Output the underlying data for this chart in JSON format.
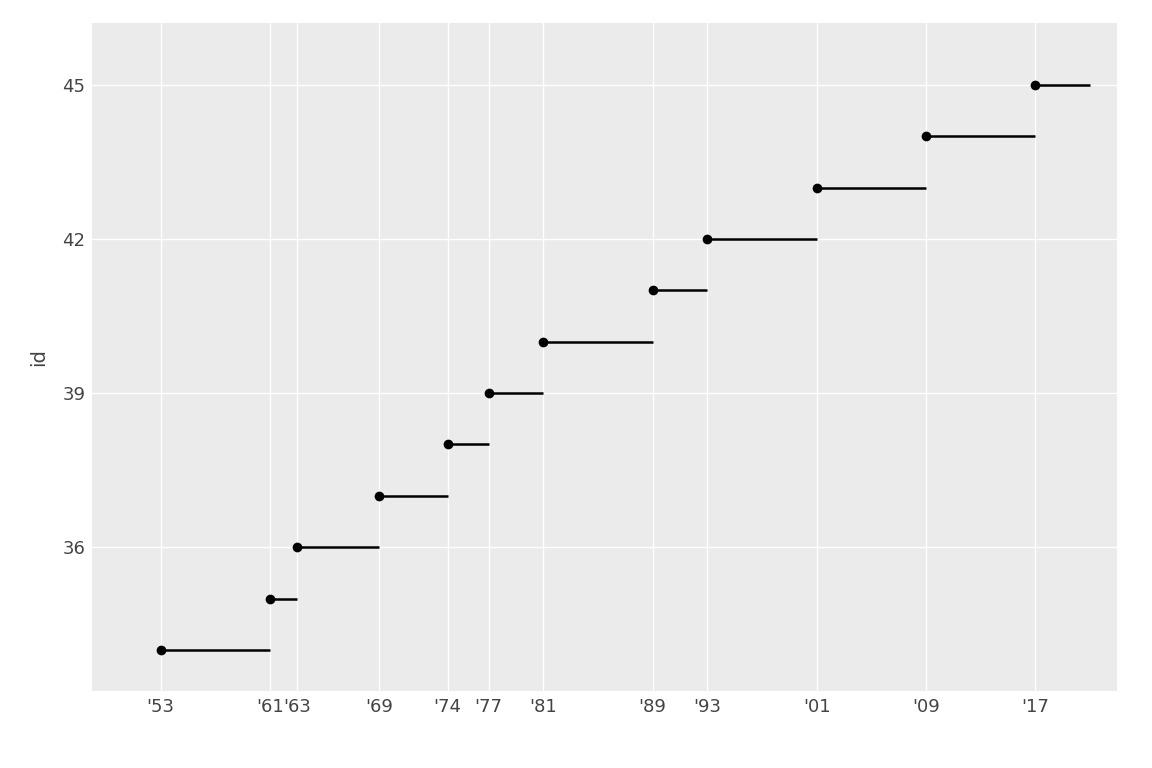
{
  "presidents": [
    {
      "id": 34,
      "start": 1953,
      "end": 1961
    },
    {
      "id": 35,
      "start": 1961,
      "end": 1963
    },
    {
      "id": 36,
      "start": 1963,
      "end": 1969
    },
    {
      "id": 37,
      "start": 1969,
      "end": 1974
    },
    {
      "id": 38,
      "start": 1974,
      "end": 1977
    },
    {
      "id": 39,
      "start": 1977,
      "end": 1981
    },
    {
      "id": 40,
      "start": 1981,
      "end": 1989
    },
    {
      "id": 41,
      "start": 1989,
      "end": 1993
    },
    {
      "id": 42,
      "start": 1993,
      "end": 2001
    },
    {
      "id": 43,
      "start": 2001,
      "end": 2009
    },
    {
      "id": 44,
      "start": 2009,
      "end": 2017
    },
    {
      "id": 45,
      "start": 2017,
      "end": 2021
    }
  ],
  "xtick_years": [
    1953,
    1961,
    1963,
    1969,
    1974,
    1977,
    1981,
    1989,
    1993,
    2001,
    2009,
    2017
  ],
  "xtick_labels": [
    "'53",
    "'61",
    "'63",
    "'69",
    "'74",
    "'77",
    "'81",
    "'89",
    "'93",
    "'01",
    "'09",
    "'17"
  ],
  "ytick_values": [
    36,
    39,
    42,
    45
  ],
  "ylabel": "id",
  "xlim": [
    1948,
    2023
  ],
  "ylim": [
    33.2,
    46.2
  ],
  "figure_background": "#FFFFFF",
  "panel_background": "#EBEBEB",
  "line_color": "#000000",
  "point_color": "#000000",
  "grid_color": "#FFFFFF",
  "point_size": 7,
  "line_width": 1.8,
  "tick_fontsize": 13,
  "ylabel_fontsize": 14
}
